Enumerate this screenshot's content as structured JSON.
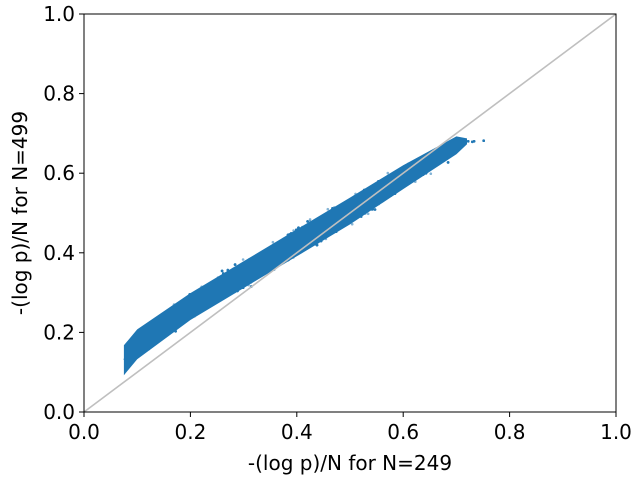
{
  "chart_data": {
    "type": "scatter",
    "title": "",
    "xlabel": "-(log p)/N for N=249",
    "ylabel": "-(log p)/N for N=499",
    "xlim": [
      0.0,
      1.0
    ],
    "ylim": [
      0.0,
      1.0
    ],
    "xticks": [
      "0.0",
      "0.2",
      "0.4",
      "0.6",
      "0.8",
      "1.0"
    ],
    "yticks": [
      "0.0",
      "0.2",
      "0.4",
      "0.6",
      "0.8",
      "1.0"
    ],
    "grid": false,
    "legend": "none",
    "point_color": "#1f77b4",
    "reference_line": {
      "x": [
        0.0,
        1.0
      ],
      "y": [
        0.0,
        1.0
      ],
      "color": "#bfbfbf"
    },
    "density_envelope": {
      "x": [
        0.075,
        0.1,
        0.2,
        0.3,
        0.4,
        0.5,
        0.6,
        0.7,
        0.72
      ],
      "y_lower": [
        0.08,
        0.12,
        0.22,
        0.3,
        0.38,
        0.46,
        0.55,
        0.64,
        0.67
      ],
      "y_upper": [
        0.18,
        0.22,
        0.31,
        0.39,
        0.47,
        0.55,
        0.63,
        0.7,
        0.69
      ]
    }
  }
}
